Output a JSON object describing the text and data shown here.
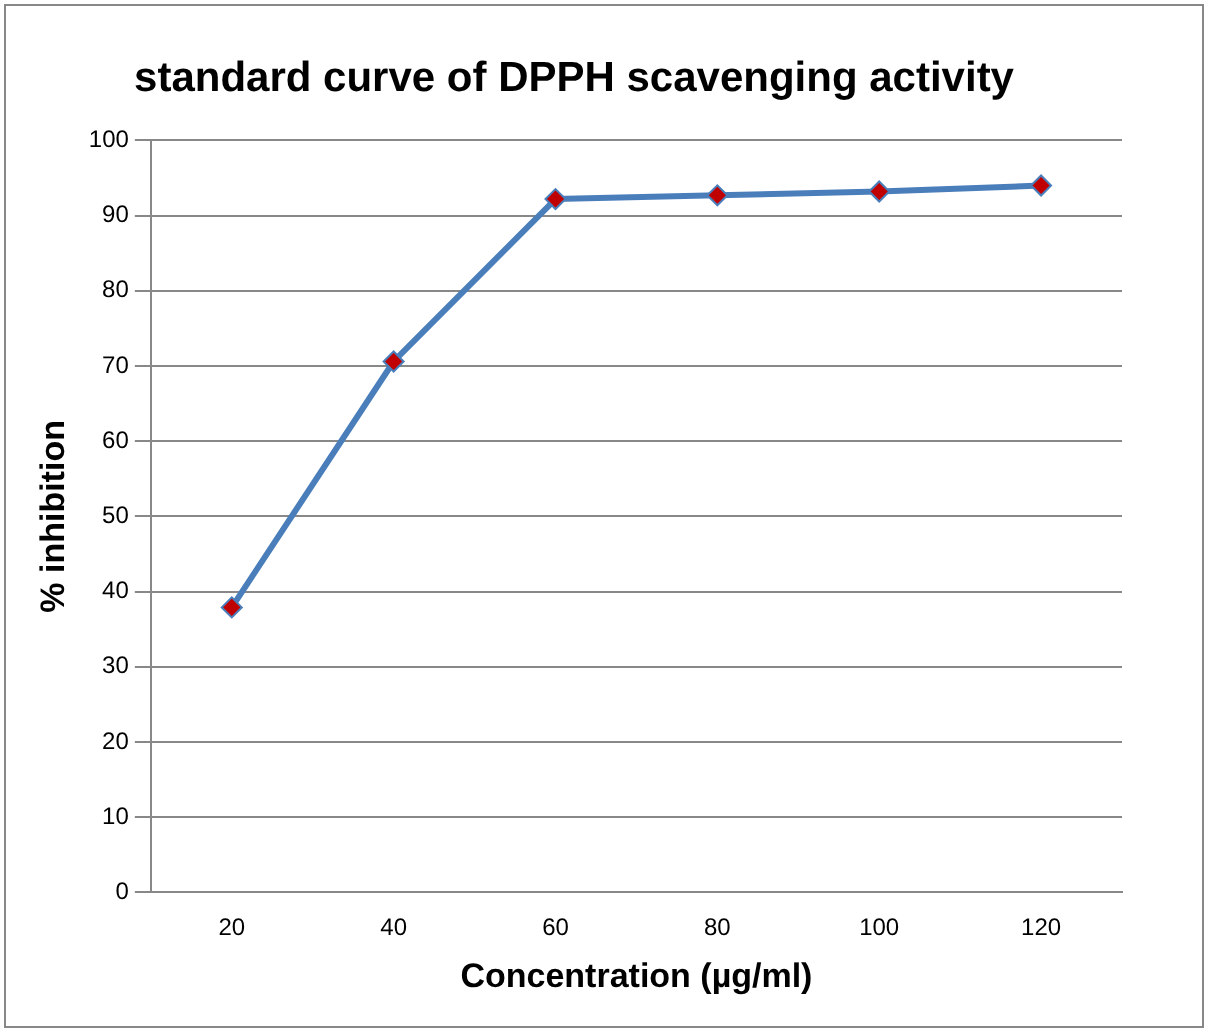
{
  "chart_data": {
    "type": "line",
    "title": "standard curve of DPPH scavenging activity",
    "xlabel": "Concentration (µg/ml)",
    "ylabel": "% inhibition",
    "categories": [
      "20",
      "40",
      "60",
      "80",
      "100",
      "120"
    ],
    "series": [
      {
        "color": "#4a7ebb",
        "values": [
          37.9,
          70.6,
          92.2,
          92.7,
          93.2,
          94.0
        ]
      }
    ],
    "ylim": [
      0,
      100
    ],
    "yticks": [
      0,
      10,
      20,
      30,
      40,
      50,
      60,
      70,
      80,
      90,
      100
    ],
    "grid": "y",
    "legend": false,
    "marker": "diamond",
    "line_style": "solid"
  }
}
